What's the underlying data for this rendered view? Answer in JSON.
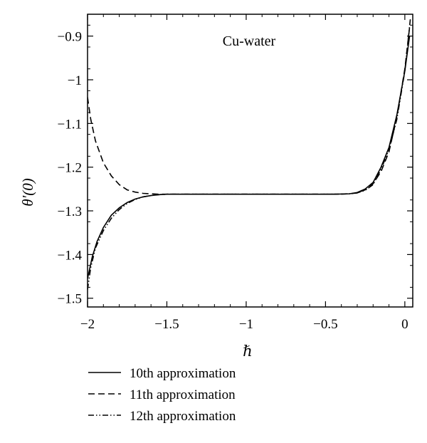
{
  "chart_data": {
    "type": "line",
    "title": "",
    "annotation": "Cu-water",
    "xlabel": "ℏ",
    "ylabel": "θ′(0)",
    "xlim": [
      -2,
      0.05
    ],
    "ylim": [
      -1.52,
      -0.85
    ],
    "x_ticks": [
      -2,
      -1.5,
      -1,
      -0.5,
      0
    ],
    "x_tick_labels": [
      "−2",
      "−1.5",
      "−1",
      "−0.5",
      "0"
    ],
    "y_ticks": [
      -0.9,
      -1,
      -1.1,
      -1.2,
      -1.3,
      -1.4,
      -1.5
    ],
    "y_tick_labels": [
      "−0.9",
      "−1",
      "−1.1",
      "−1.2",
      "−1.3",
      "−1.4",
      "−1.5"
    ],
    "grid": false,
    "legend_position": "below",
    "series": [
      {
        "name": "10th approximation",
        "style": "solid",
        "x": [
          -2.0,
          -1.97,
          -1.94,
          -1.9,
          -1.85,
          -1.8,
          -1.75,
          -1.7,
          -1.65,
          -1.6,
          -1.55,
          -1.5,
          -1.4,
          -1.2,
          -1.0,
          -0.8,
          -0.6,
          -0.45,
          -0.35,
          -0.3,
          -0.25,
          -0.2,
          -0.15,
          -0.1,
          -0.05,
          0.0,
          0.03
        ],
        "y": [
          -1.455,
          -1.405,
          -1.37,
          -1.338,
          -1.31,
          -1.293,
          -1.281,
          -1.273,
          -1.268,
          -1.265,
          -1.263,
          -1.262,
          -1.262,
          -1.262,
          -1.262,
          -1.262,
          -1.262,
          -1.262,
          -1.261,
          -1.258,
          -1.25,
          -1.235,
          -1.2,
          -1.155,
          -1.08,
          -0.98,
          -0.9
        ]
      },
      {
        "name": "11th approximation",
        "style": "dashed",
        "x": [
          -2.0,
          -1.98,
          -1.95,
          -1.9,
          -1.85,
          -1.8,
          -1.75,
          -1.7,
          -1.65,
          -1.6,
          -1.55,
          -1.5,
          -1.4,
          -1.2,
          -1.0,
          -0.8,
          -0.6,
          -0.45,
          -0.35,
          -0.3,
          -0.25,
          -0.2,
          -0.15,
          -0.1,
          -0.05,
          0.0,
          0.03
        ],
        "y": [
          -1.04,
          -1.09,
          -1.14,
          -1.19,
          -1.22,
          -1.24,
          -1.252,
          -1.257,
          -1.26,
          -1.261,
          -1.262,
          -1.262,
          -1.262,
          -1.262,
          -1.262,
          -1.262,
          -1.262,
          -1.262,
          -1.261,
          -1.259,
          -1.252,
          -1.238,
          -1.21,
          -1.165,
          -1.085,
          -0.975,
          -0.88
        ]
      },
      {
        "name": "12th approximation",
        "style": "dash-dot-dot",
        "x": [
          -2.0,
          -1.98,
          -1.95,
          -1.9,
          -1.85,
          -1.8,
          -1.75,
          -1.7,
          -1.65,
          -1.6,
          -1.55,
          -1.5,
          -1.4,
          -1.2,
          -1.0,
          -0.8,
          -0.6,
          -0.45,
          -0.35,
          -0.3,
          -0.25,
          -0.2,
          -0.15,
          -0.1,
          -0.05,
          0.0,
          0.035
        ],
        "y": [
          -1.48,
          -1.43,
          -1.385,
          -1.345,
          -1.317,
          -1.297,
          -1.283,
          -1.274,
          -1.268,
          -1.265,
          -1.263,
          -1.262,
          -1.262,
          -1.262,
          -1.262,
          -1.262,
          -1.262,
          -1.262,
          -1.261,
          -1.259,
          -1.253,
          -1.24,
          -1.205,
          -1.16,
          -1.09,
          -0.98,
          -0.86
        ]
      }
    ]
  }
}
